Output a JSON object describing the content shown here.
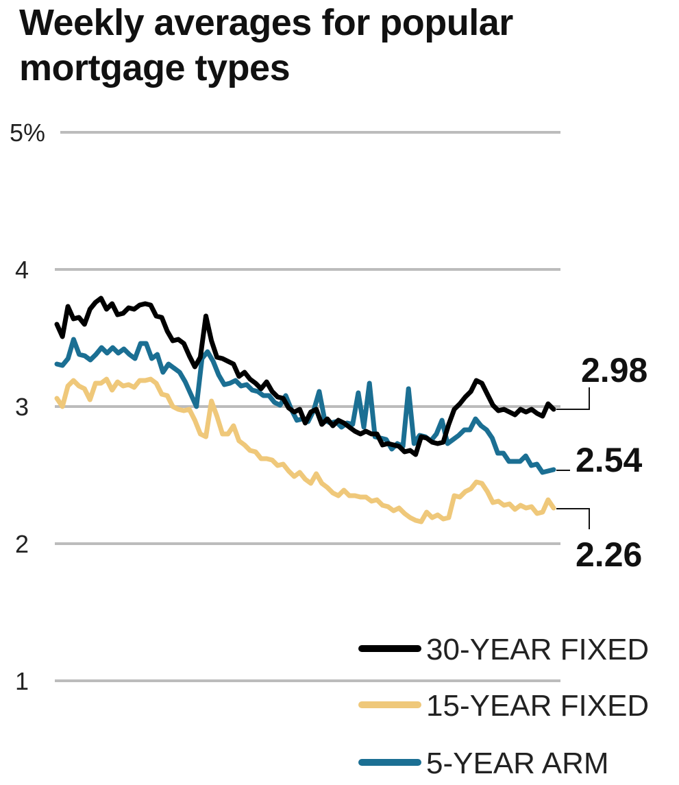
{
  "chart_data": {
    "type": "line",
    "title": "Weekly averages for popular mortgage types",
    "xlabel": "",
    "ylabel": "",
    "ylim": [
      1,
      5
    ],
    "y_ticks": [
      {
        "value": 5,
        "label": "5%"
      },
      {
        "value": 4,
        "label": "4"
      },
      {
        "value": 3,
        "label": "3"
      },
      {
        "value": 2,
        "label": "2"
      },
      {
        "value": 1,
        "label": "1"
      }
    ],
    "grid": true,
    "legend_position": "bottom-right",
    "series": [
      {
        "name": "30-YEAR FIXED",
        "color": "#000000",
        "end_label": "2.98",
        "values": [
          3.6,
          3.51,
          3.73,
          3.64,
          3.65,
          3.6,
          3.71,
          3.76,
          3.79,
          3.71,
          3.75,
          3.67,
          3.68,
          3.72,
          3.71,
          3.74,
          3.75,
          3.74,
          3.66,
          3.65,
          3.55,
          3.48,
          3.49,
          3.46,
          3.37,
          3.29,
          3.36,
          3.66,
          3.48,
          3.36,
          3.35,
          3.33,
          3.31,
          3.22,
          3.25,
          3.2,
          3.17,
          3.13,
          3.18,
          3.11,
          3.07,
          3.06,
          2.99,
          2.96,
          2.98,
          2.88,
          2.96,
          2.98,
          2.87,
          2.91,
          2.86,
          2.9,
          2.88,
          2.85,
          2.82,
          2.8,
          2.82,
          2.8,
          2.8,
          2.72,
          2.73,
          2.72,
          2.71,
          2.67,
          2.68,
          2.65,
          2.78,
          2.77,
          2.74,
          2.73,
          2.74,
          2.87,
          2.98,
          3.02,
          3.07,
          3.11,
          3.19,
          3.17,
          3.09,
          3.01,
          2.97,
          2.98,
          2.96,
          2.94,
          2.98,
          2.96,
          2.98,
          2.95,
          2.93,
          3.02,
          2.98
        ]
      },
      {
        "name": "15-YEAR FIXED",
        "color": "#EFC87A",
        "end_label": "2.26",
        "values": [
          3.06,
          3.0,
          3.15,
          3.19,
          3.15,
          3.13,
          3.05,
          3.17,
          3.17,
          3.2,
          3.12,
          3.18,
          3.15,
          3.16,
          3.14,
          3.19,
          3.19,
          3.2,
          3.17,
          3.09,
          3.08,
          3.0,
          2.98,
          2.97,
          2.98,
          2.9,
          2.8,
          2.78,
          3.04,
          2.93,
          2.8,
          2.8,
          2.86,
          2.75,
          2.72,
          2.68,
          2.67,
          2.62,
          2.62,
          2.61,
          2.57,
          2.58,
          2.53,
          2.49,
          2.52,
          2.47,
          2.44,
          2.51,
          2.44,
          2.41,
          2.37,
          2.35,
          2.39,
          2.35,
          2.35,
          2.34,
          2.34,
          2.31,
          2.32,
          2.28,
          2.27,
          2.24,
          2.26,
          2.22,
          2.19,
          2.17,
          2.16,
          2.23,
          2.19,
          2.21,
          2.18,
          2.19,
          2.35,
          2.34,
          2.38,
          2.4,
          2.45,
          2.44,
          2.38,
          2.3,
          2.31,
          2.28,
          2.29,
          2.25,
          2.28,
          2.26,
          2.27,
          2.22,
          2.23,
          2.32,
          2.26
        ]
      },
      {
        "name": "5-YEAR ARM",
        "color": "#1B6F93",
        "end_label": "2.54",
        "values": [
          3.31,
          3.3,
          3.35,
          3.49,
          3.38,
          3.37,
          3.34,
          3.38,
          3.43,
          3.39,
          3.43,
          3.39,
          3.42,
          3.38,
          3.35,
          3.46,
          3.46,
          3.35,
          3.38,
          3.25,
          3.31,
          3.28,
          3.25,
          3.18,
          3.09,
          3.0,
          3.35,
          3.4,
          3.33,
          3.23,
          3.16,
          3.17,
          3.19,
          3.15,
          3.16,
          3.12,
          3.11,
          3.08,
          3.08,
          3.03,
          3.01,
          3.08,
          2.98,
          2.9,
          2.91,
          2.89,
          2.97,
          3.11,
          2.9,
          2.88,
          2.89,
          2.85,
          2.88,
          2.87,
          3.1,
          2.85,
          3.17,
          2.78,
          2.77,
          2.76,
          2.69,
          2.73,
          2.71,
          3.13,
          2.73,
          2.79,
          2.78,
          2.75,
          2.8,
          2.9,
          2.73,
          2.76,
          2.79,
          2.83,
          2.83,
          2.91,
          2.86,
          2.83,
          2.77,
          2.66,
          2.66,
          2.6,
          2.6,
          2.6,
          2.64,
          2.57,
          2.58,
          2.52,
          2.53,
          2.54
        ]
      }
    ]
  }
}
